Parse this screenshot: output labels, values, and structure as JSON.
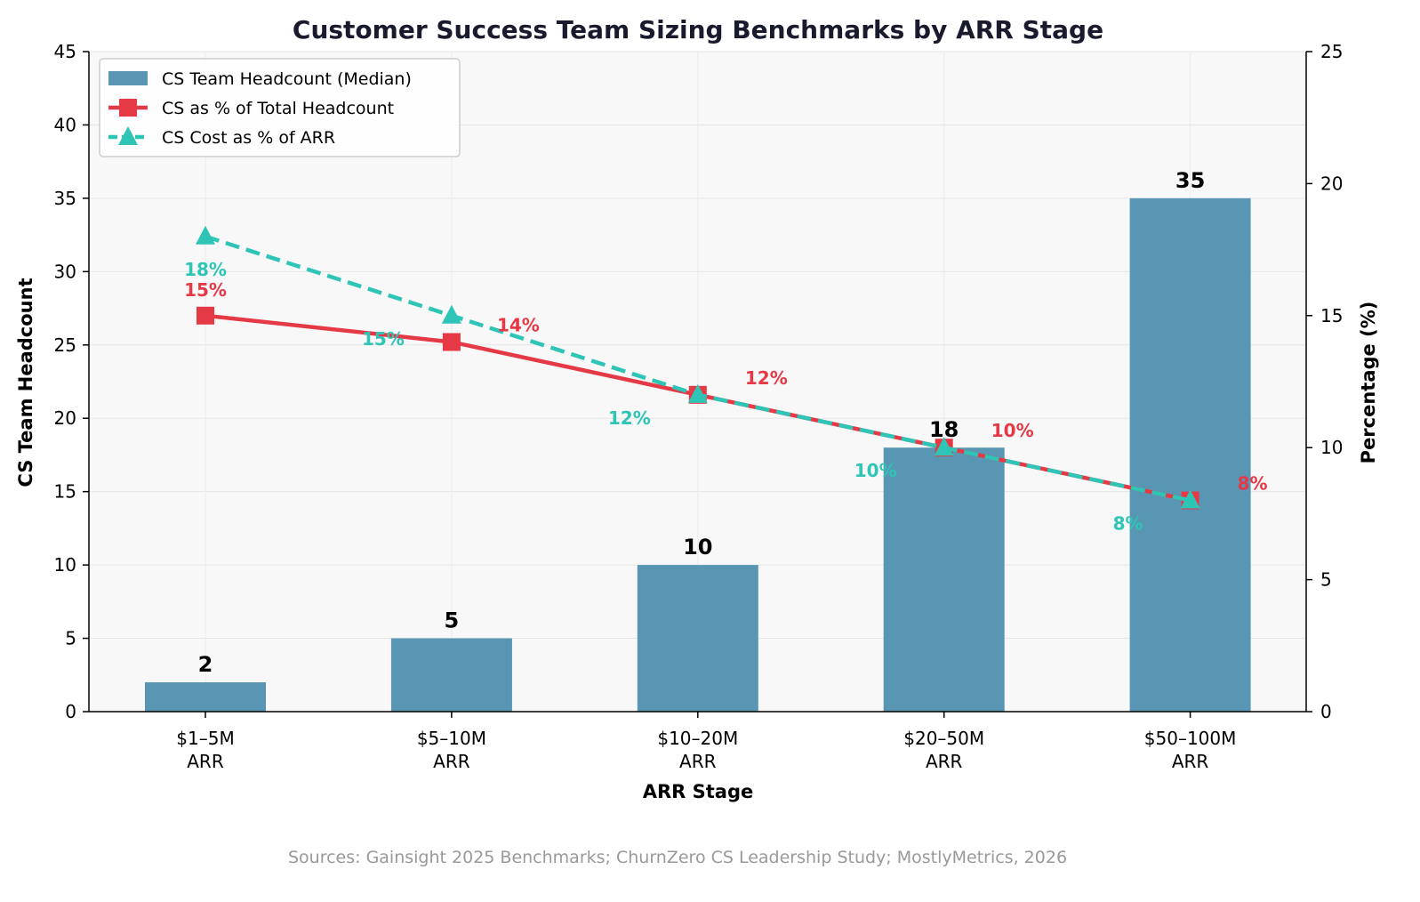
{
  "chart_data": {
    "type": "bar",
    "title": "Customer Success Team Sizing Benchmarks by ARR Stage",
    "xlabel": "ARR Stage",
    "ylabel": "CS Team Headcount",
    "y2label": "Percentage (%)",
    "categories": [
      [
        "$1–5M",
        "ARR"
      ],
      [
        "$5–10M",
        "ARR"
      ],
      [
        "$10–20M",
        "ARR"
      ],
      [
        "$20–50M",
        "ARR"
      ],
      [
        "$50–100M",
        "ARR"
      ]
    ],
    "ylim": [
      0,
      45
    ],
    "y2lim": [
      0,
      25
    ],
    "yticks": [
      0,
      5,
      10,
      15,
      20,
      25,
      30,
      35,
      40,
      45
    ],
    "y2ticks": [
      0,
      5,
      10,
      15,
      20,
      25
    ],
    "grid": true,
    "legend_position": "top-left",
    "series": [
      {
        "name": "CS Team Headcount (Median)",
        "kind": "bar",
        "axis": "left",
        "color": "#5896b4",
        "values": [
          2,
          5,
          10,
          18,
          35
        ],
        "labels": [
          "2",
          "5",
          "10",
          "18",
          "35"
        ]
      },
      {
        "name": "CS as % of Total Headcount",
        "kind": "line",
        "axis": "right",
        "color": "#e63946",
        "marker": "square",
        "dash": "solid",
        "values": [
          15,
          14,
          12,
          10,
          8
        ],
        "labels": [
          "15%",
          "14%",
          "12%",
          "10%",
          "8%"
        ]
      },
      {
        "name": "CS Cost as % of ARR",
        "kind": "line",
        "axis": "right",
        "color": "#2ec4b6",
        "marker": "triangle",
        "dash": "dashed",
        "values": [
          18,
          15,
          12,
          10,
          8
        ],
        "labels": [
          "18%",
          "15%",
          "12%",
          "10%",
          "8%"
        ]
      }
    ]
  },
  "footer": {
    "source": "Sources: Gainsight 2025 Benchmarks; ChurnZero CS Leadership Study; MostlyMetrics, 2026"
  },
  "colors": {
    "plot_background": "#f8f8f9",
    "title": "#1a1a2e",
    "source_text": "#999999"
  }
}
